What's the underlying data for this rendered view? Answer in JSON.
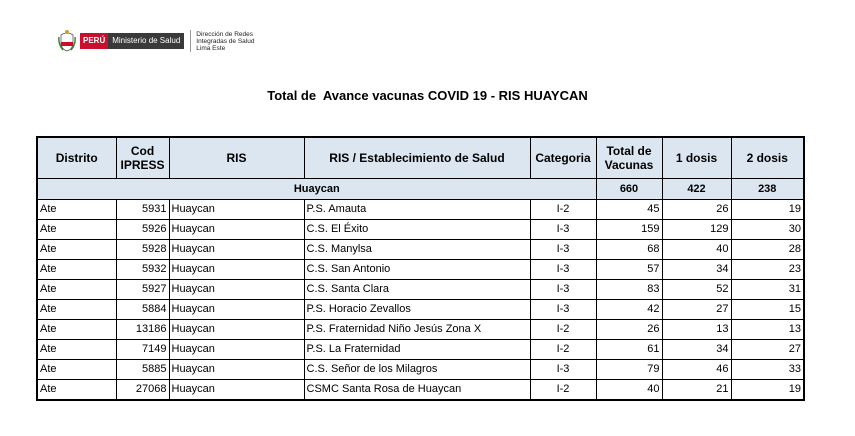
{
  "header": {
    "brand_peru": "PERÚ",
    "brand_ministry": "Ministerio de Salud",
    "brand_diris_lines": [
      "Dirección de Redes",
      "Integradas de Salud",
      "Lima Este"
    ]
  },
  "title": "Total de  Avance vacunas COVID 19 - RIS HUAYCAN",
  "table": {
    "columns": {
      "distrito": "Distrito",
      "cod_ipress_1": "Cod",
      "cod_ipress_2": "IPRESS",
      "ris": "RIS",
      "establecimiento": "RIS / Establecimiento de Salud",
      "categoria": "Categoria",
      "total_1": "Total de",
      "total_2": "Vacunas",
      "dosis1": "1 dosis",
      "dosis2": "2 dosis"
    },
    "summary": {
      "label": "Huaycan",
      "total": "660",
      "dosis1": "422",
      "dosis2": "238"
    },
    "rows": [
      {
        "distrito": "Ate",
        "cod": "5931",
        "ris": "Huaycan",
        "est": "P.S. Amauta",
        "cat": "I-2",
        "total": "45",
        "d1": "26",
        "d2": "19"
      },
      {
        "distrito": "Ate",
        "cod": "5926",
        "ris": "Huaycan",
        "est": "C.S. El Éxito",
        "cat": "I-3",
        "total": "159",
        "d1": "129",
        "d2": "30"
      },
      {
        "distrito": "Ate",
        "cod": "5928",
        "ris": "Huaycan",
        "est": "C.S. Manylsa",
        "cat": "I-3",
        "total": "68",
        "d1": "40",
        "d2": "28"
      },
      {
        "distrito": "Ate",
        "cod": "5932",
        "ris": "Huaycan",
        "est": "C.S. San Antonio",
        "cat": "I-3",
        "total": "57",
        "d1": "34",
        "d2": "23"
      },
      {
        "distrito": "Ate",
        "cod": "5927",
        "ris": "Huaycan",
        "est": "C.S. Santa Clara",
        "cat": "I-3",
        "total": "83",
        "d1": "52",
        "d2": "31"
      },
      {
        "distrito": "Ate",
        "cod": "5884",
        "ris": "Huaycan",
        "est": "P.S. Horacio Zevallos",
        "cat": "I-3",
        "total": "42",
        "d1": "27",
        "d2": "15"
      },
      {
        "distrito": "Ate",
        "cod": "13186",
        "ris": "Huaycan",
        "est": "P.S. Fraternidad Niño Jesús Zona X",
        "cat": "I-2",
        "total": "26",
        "d1": "13",
        "d2": "13"
      },
      {
        "distrito": "Ate",
        "cod": "7149",
        "ris": "Huaycan",
        "est": "P.S. La Fraternidad",
        "cat": "I-2",
        "total": "61",
        "d1": "34",
        "d2": "27"
      },
      {
        "distrito": "Ate",
        "cod": "5885",
        "ris": "Huaycan",
        "est": "C.S. Señor de los Milagros",
        "cat": "I-3",
        "total": "79",
        "d1": "46",
        "d2": "33"
      },
      {
        "distrito": "Ate",
        "cod": "27068",
        "ris": "Huaycan",
        "est": "CSMC Santa Rosa de Huaycan",
        "cat": "I-2",
        "total": "40",
        "d1": "21",
        "d2": "19"
      }
    ]
  },
  "colors": {
    "header_fill": "#dce6f1",
    "peru_red": "#c8102e",
    "ministry_gray": "#3a3a3a"
  }
}
